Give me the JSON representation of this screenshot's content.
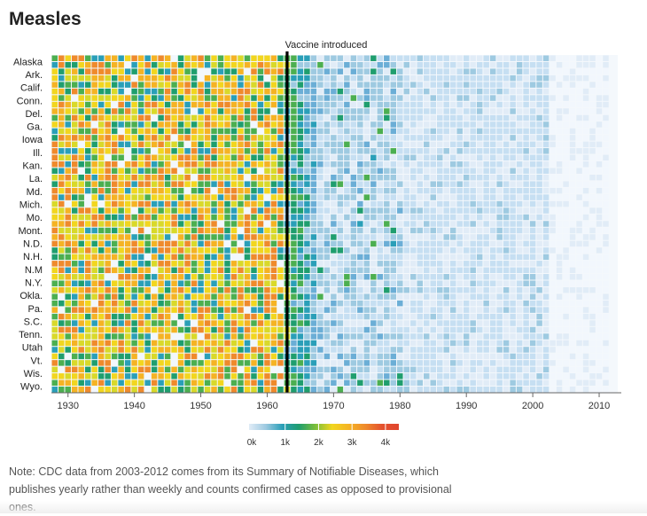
{
  "title": "Measles",
  "note": "Note: CDC data from 2003-2012 comes from its Summary of Notifiable Diseases, which publishes yearly rather than weekly and counts confirmed cases as opposed to provisional ones.",
  "chart_data": {
    "type": "heatmap",
    "title": "Measles",
    "xlabel": "",
    "ylabel": "",
    "x_start": 1928,
    "x_end": 2011,
    "xlim": [
      1927.5,
      2012.8
    ],
    "x_ticks": [
      1930,
      1940,
      1950,
      1960,
      1970,
      1980,
      1990,
      2000,
      2010
    ],
    "y_labels": [
      "Alaska",
      "Ark.",
      "Calif.",
      "Conn.",
      "Del.",
      "Ga.",
      "Iowa",
      "Ill.",
      "Kan.",
      "La.",
      "Md.",
      "Mich.",
      "Mo.",
      "Mont.",
      "N.D.",
      "N.H.",
      "N.M",
      "N.Y.",
      "Okla.",
      "Pa.",
      "S.C.",
      "Tenn.",
      "Utah",
      "Vt.",
      "Wis.",
      "Wyo."
    ],
    "row_count": 51,
    "annotation": {
      "year": 1963,
      "label": "Vaccine introduced"
    },
    "legend": {
      "placement": "bottom-center",
      "ticks": [
        "0k",
        "1k",
        "2k",
        "3k",
        "4k"
      ],
      "tick_values": [
        0,
        1000,
        2000,
        3000,
        4000
      ],
      "max": 4400
    },
    "colors": {
      "zero": "#f2f7fd",
      "scale": [
        "#e1ecf7",
        "#c6dff2",
        "#9ecae1",
        "#6baed6",
        "#2a9fb8",
        "#1f9e6e",
        "#4caf50",
        "#d9d92a",
        "#f2d61f",
        "#f5b324",
        "#ef8a2c",
        "#e4512e"
      ],
      "vaccine_line": "#000000",
      "axis": "#666666",
      "grid_bg": "#f4f8fc"
    },
    "values_by_era": {
      "1928-1962": "mostly 200-2000 cases per state per year, peaks up to ~3000",
      "1963-1967": "declining after vaccine, ~100-800",
      "1968-2002": "under ~100 with occasional outbreaks",
      "2003-2011": "near 0"
    },
    "seed": 7
  }
}
